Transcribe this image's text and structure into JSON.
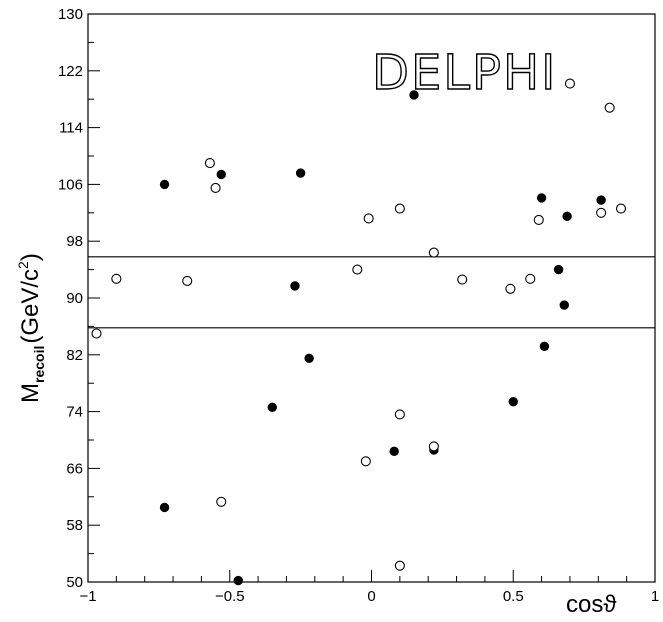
{
  "chart_data": {
    "type": "scatter",
    "xlim": [
      -1,
      1
    ],
    "ylim": [
      50,
      130
    ],
    "x_ticks": [
      -1,
      -0.5,
      0,
      0.5,
      1
    ],
    "x_tick_labels": [
      "−1",
      "−0.5",
      "0",
      "0.5",
      "1"
    ],
    "y_ticks": [
      50,
      58,
      66,
      74,
      82,
      90,
      98,
      106,
      114,
      122,
      130
    ],
    "y_tick_labels": [
      "50",
      "58",
      "66",
      "74",
      "82",
      "90",
      "98",
      "106",
      "114",
      "122",
      "130"
    ],
    "xlabel": "cosϑ",
    "ylabel_main": "M",
    "ylabel_sub": "recoil",
    "ylabel_unit_a": "(GeV/c",
    "ylabel_unit_sup": "2",
    "ylabel_unit_b": ")",
    "logo_text": "DELPHI",
    "grid": false,
    "reference_lines_y": [
      95.8,
      85.8
    ],
    "series": [
      {
        "marker": "filled-circle",
        "color": "#000000",
        "points": [
          [
            -0.97,
            85.0
          ],
          [
            -0.73,
            106.0
          ],
          [
            -0.53,
            107.4
          ],
          [
            -0.25,
            107.6
          ],
          [
            -0.27,
            91.7
          ],
          [
            -0.22,
            81.5
          ],
          [
            -0.35,
            74.6
          ],
          [
            -0.73,
            60.5
          ],
          [
            -0.47,
            50.2
          ],
          [
            -0.01,
            101.2
          ],
          [
            0.15,
            118.6
          ],
          [
            0.08,
            68.4
          ],
          [
            0.22,
            68.6
          ],
          [
            0.5,
            75.4
          ],
          [
            0.6,
            104.1
          ],
          [
            0.69,
            101.5
          ],
          [
            0.68,
            89.0
          ],
          [
            0.61,
            83.2
          ],
          [
            0.66,
            94.0
          ],
          [
            0.81,
            103.8
          ]
        ]
      },
      {
        "marker": "open-circle",
        "color": "#000000",
        "points": [
          [
            -0.97,
            85.0
          ],
          [
            -0.9,
            92.7
          ],
          [
            -0.65,
            92.4
          ],
          [
            -0.57,
            109.0
          ],
          [
            -0.55,
            105.5
          ],
          [
            -0.05,
            94.0
          ],
          [
            -0.01,
            101.2
          ],
          [
            0.1,
            102.6
          ],
          [
            0.22,
            96.4
          ],
          [
            0.32,
            92.6
          ],
          [
            0.49,
            91.3
          ],
          [
            0.56,
            92.7
          ],
          [
            0.59,
            101.0
          ],
          [
            0.7,
            120.2
          ],
          [
            0.81,
            102.0
          ],
          [
            0.84,
            116.8
          ],
          [
            0.88,
            102.6
          ],
          [
            0.1,
            73.6
          ],
          [
            0.22,
            69.1
          ],
          [
            -0.02,
            67.0
          ],
          [
            -0.53,
            61.3
          ],
          [
            0.1,
            52.3
          ]
        ]
      }
    ]
  }
}
